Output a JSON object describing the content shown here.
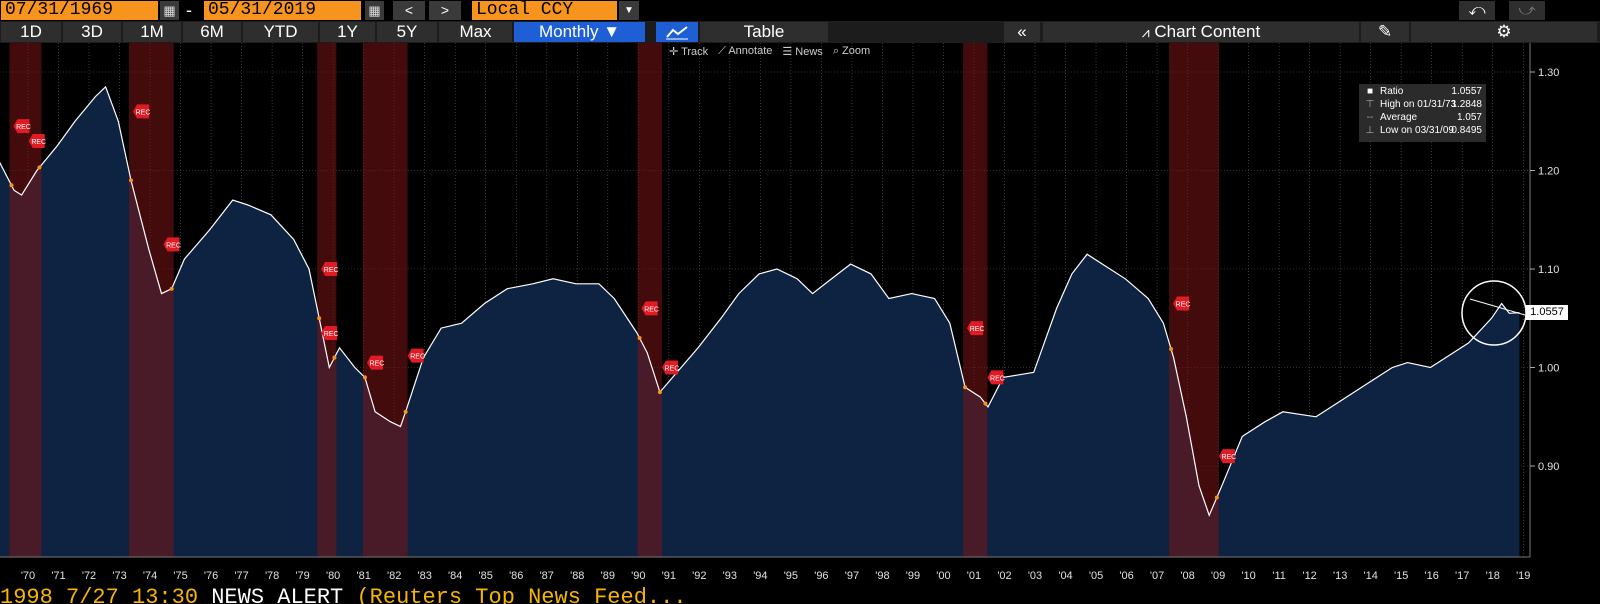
{
  "toolbar": {
    "start_date": "07/31/1969",
    "dash": "-",
    "end_date": "05/31/2019",
    "prev": "<",
    "next": ">",
    "currency": "Local CCY",
    "undo": "⤺",
    "redo": "⤻"
  },
  "periods": [
    {
      "label": "1D",
      "selected": false
    },
    {
      "label": "3D",
      "selected": false
    },
    {
      "label": "1M",
      "selected": false
    },
    {
      "label": "6M",
      "selected": false
    },
    {
      "label": "YTD",
      "selected": false
    },
    {
      "label": "1Y",
      "selected": false
    },
    {
      "label": "5Y",
      "selected": false
    },
    {
      "label": "Max",
      "selected": false
    }
  ],
  "frequency": "Monthly ▼",
  "table_label": "Table",
  "chart_content_label": "Chart Content",
  "chart_tools": [
    "Track",
    "Annotate",
    "News",
    "Zoom"
  ],
  "ticker": {
    "part1": "1998  7/27 13:30 ",
    "part2": "NEWS ALERT",
    "part3": "(Reuters Top News Feed..."
  },
  "legend": [
    {
      "icon": "■",
      "label": "Ratio",
      "value": "1.0557"
    },
    {
      "icon": "⊤",
      "label": "High on 01/31/73",
      "value": "1.2848"
    },
    {
      "icon": "--",
      "label": "Average",
      "value": "1.057"
    },
    {
      "icon": "⊥",
      "label": "Low on 03/31/09",
      "value": "0.8495"
    }
  ],
  "last_value": "1.0557",
  "colors": {
    "accent": "#f7941d",
    "selected": "#1f5fd6",
    "area": "#0f2240",
    "recession": "#6b0f0f",
    "line": "#ffffff"
  },
  "chart_data": {
    "type": "area",
    "title": "",
    "series": [
      {
        "name": "Ratio",
        "x_start": "1969-07-31",
        "x_end": "2019-05-31",
        "points": [
          [
            "1969-07",
            1.21
          ],
          [
            "1970-01",
            1.18
          ],
          [
            "1970-04",
            1.175
          ],
          [
            "1970-10",
            1.2
          ],
          [
            "1971-06",
            1.225
          ],
          [
            "1972-01",
            1.25
          ],
          [
            "1972-09",
            1.275
          ],
          [
            "1973-01",
            1.285
          ],
          [
            "1973-06",
            1.25
          ],
          [
            "1973-11",
            1.19
          ],
          [
            "1974-06",
            1.12
          ],
          [
            "1974-11",
            1.075
          ],
          [
            "1975-03",
            1.08
          ],
          [
            "1975-08",
            1.11
          ],
          [
            "1976-06",
            1.14
          ],
          [
            "1977-03",
            1.17
          ],
          [
            "1977-09",
            1.165
          ],
          [
            "1978-06",
            1.155
          ],
          [
            "1979-03",
            1.13
          ],
          [
            "1979-09",
            1.1
          ],
          [
            "1980-01",
            1.05
          ],
          [
            "1980-05",
            1.0
          ],
          [
            "1980-09",
            1.02
          ],
          [
            "1981-03",
            1.0
          ],
          [
            "1981-07",
            0.99
          ],
          [
            "1981-11",
            0.955
          ],
          [
            "1982-05",
            0.945
          ],
          [
            "1982-09",
            0.94
          ],
          [
            "1982-11",
            0.955
          ],
          [
            "1983-06",
            1.01
          ],
          [
            "1984-01",
            1.04
          ],
          [
            "1984-09",
            1.045
          ],
          [
            "1985-06",
            1.065
          ],
          [
            "1986-03",
            1.08
          ],
          [
            "1987-01",
            1.085
          ],
          [
            "1987-09",
            1.09
          ],
          [
            "1988-06",
            1.085
          ],
          [
            "1989-03",
            1.085
          ],
          [
            "1989-09",
            1.07
          ],
          [
            "1990-06",
            1.035
          ],
          [
            "1990-10",
            1.015
          ],
          [
            "1991-03",
            0.975
          ],
          [
            "1991-08",
            0.99
          ],
          [
            "1992-06",
            1.02
          ],
          [
            "1993-03",
            1.05
          ],
          [
            "1993-10",
            1.075
          ],
          [
            "1994-06",
            1.095
          ],
          [
            "1995-01",
            1.1
          ],
          [
            "1995-09",
            1.09
          ],
          [
            "1996-03",
            1.075
          ],
          [
            "1997-01",
            1.095
          ],
          [
            "1997-06",
            1.105
          ],
          [
            "1998-02",
            1.095
          ],
          [
            "1998-09",
            1.07
          ],
          [
            "1999-06",
            1.075
          ],
          [
            "2000-03",
            1.07
          ],
          [
            "2000-09",
            1.045
          ],
          [
            "2001-03",
            0.98
          ],
          [
            "2001-09",
            0.97
          ],
          [
            "2001-12",
            0.96
          ],
          [
            "2002-06",
            0.99
          ],
          [
            "2003-06",
            0.995
          ],
          [
            "2004-03",
            1.06
          ],
          [
            "2004-09",
            1.095
          ],
          [
            "2005-03",
            1.115
          ],
          [
            "2005-09",
            1.105
          ],
          [
            "2006-06",
            1.09
          ],
          [
            "2007-03",
            1.07
          ],
          [
            "2007-09",
            1.045
          ],
          [
            "2008-01",
            1.01
          ],
          [
            "2008-06",
            0.95
          ],
          [
            "2008-11",
            0.88
          ],
          [
            "2009-03",
            0.85
          ],
          [
            "2009-08",
            0.88
          ],
          [
            "2010-04",
            0.93
          ],
          [
            "2011-01",
            0.945
          ],
          [
            "2011-08",
            0.955
          ],
          [
            "2012-09",
            0.95
          ],
          [
            "2013-06",
            0.965
          ],
          [
            "2014-06",
            0.985
          ],
          [
            "2015-03",
            1.0
          ],
          [
            "2015-09",
            1.005
          ],
          [
            "2016-06",
            1.0
          ],
          [
            "2017-03",
            1.015
          ],
          [
            "2017-09",
            1.025
          ],
          [
            "2018-06",
            1.05
          ],
          [
            "2018-10",
            1.065
          ],
          [
            "2019-01",
            1.055
          ],
          [
            "2019-05",
            1.0557
          ]
        ]
      }
    ],
    "recessions": [
      {
        "start": "1969-12",
        "end": "1970-11",
        "label": "REC"
      },
      {
        "start": "1973-11",
        "end": "1975-03",
        "label": "REC"
      },
      {
        "start": "1980-01",
        "end": "1980-07",
        "label": "REC"
      },
      {
        "start": "1981-07",
        "end": "1982-11",
        "label": "REC"
      },
      {
        "start": "1990-07",
        "end": "1991-03",
        "label": "REC"
      },
      {
        "start": "2001-03",
        "end": "2001-11",
        "label": "REC"
      },
      {
        "start": "2007-12",
        "end": "2009-06",
        "label": "REC"
      }
    ],
    "rec_tags": [
      {
        "date": "1969-12",
        "value": 1.245
      },
      {
        "date": "1970-06",
        "value": 1.23
      },
      {
        "date": "1973-11",
        "value": 1.26
      },
      {
        "date": "1974-11",
        "value": 1.125
      },
      {
        "date": "1980-01",
        "value": 1.1
      },
      {
        "date": "1980-01",
        "value": 1.035
      },
      {
        "date": "1981-07",
        "value": 1.005
      },
      {
        "date": "1982-11",
        "value": 1.012
      },
      {
        "date": "1990-07",
        "value": 1.06
      },
      {
        "date": "1991-03",
        "value": 1.0
      },
      {
        "date": "2001-03",
        "value": 1.04
      },
      {
        "date": "2001-11",
        "value": 0.99
      },
      {
        "date": "2007-12",
        "value": 1.065
      },
      {
        "date": "2009-06",
        "value": 0.91
      }
    ],
    "yaxis": {
      "ticks": [
        0.9,
        1.0,
        1.1,
        1.2,
        1.3
      ],
      "tick_labels": [
        "0.90",
        "1.00",
        "1.10",
        "1.20",
        "1.30"
      ],
      "ylim": [
        0.82,
        1.31
      ]
    },
    "xaxis": {
      "tick_labels": [
        "'70",
        "'71",
        "'72",
        "'73",
        "'74",
        "'75",
        "'76",
        "'77",
        "'78",
        "'79",
        "'80",
        "'81",
        "'82",
        "'83",
        "'84",
        "'85",
        "'86",
        "'87",
        "'88",
        "'89",
        "'90",
        "'91",
        "'92",
        "'93",
        "'94",
        "'95",
        "'96",
        "'97",
        "'98",
        "'99",
        "'00",
        "'01",
        "'02",
        "'03",
        "'04",
        "'05",
        "'06",
        "'07",
        "'08",
        "'09",
        "'10",
        "'11",
        "'12",
        "'13",
        "'14",
        "'15",
        "'16",
        "'17",
        "'18",
        "'19"
      ]
    },
    "grid": true
  }
}
